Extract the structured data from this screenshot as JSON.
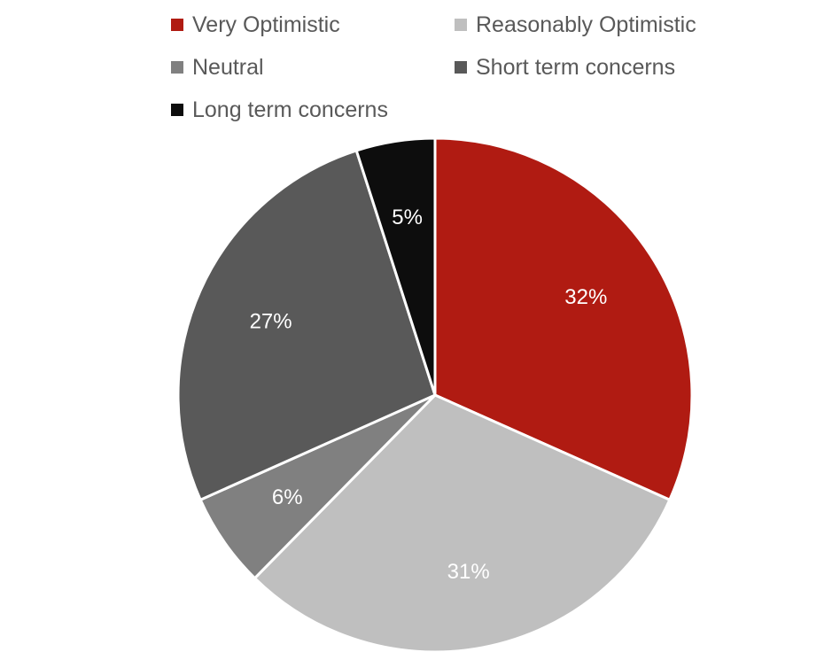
{
  "chart_data": {
    "type": "pie",
    "categories": [
      "Very Optimistic",
      "Reasonably Optimistic",
      "Neutral",
      "Short term concerns",
      "Long term concerns"
    ],
    "values": [
      32,
      31,
      6,
      27,
      5
    ],
    "data_labels": [
      "32%",
      "31%",
      "6%",
      "27%",
      "5%"
    ],
    "colors": [
      "#B01B12",
      "#BFBFBF",
      "#808080",
      "#595959",
      "#0D0D0D"
    ],
    "legend_position": "top",
    "start_angle_deg": 0,
    "direction": "clockwise"
  }
}
